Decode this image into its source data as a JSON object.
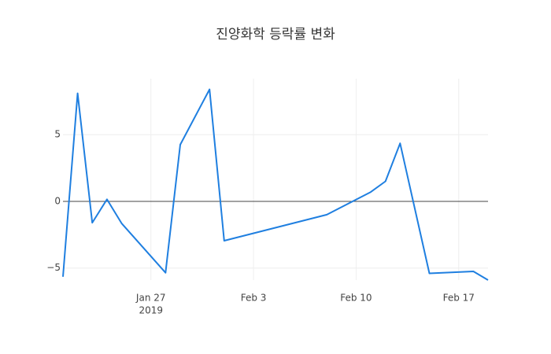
{
  "chart_data": {
    "type": "line",
    "title": "진양화학 등락률 변화",
    "x": [
      "2019-01-21",
      "2019-01-22",
      "2019-01-23",
      "2019-01-24",
      "2019-01-25",
      "2019-01-28",
      "2019-01-29",
      "2019-01-31",
      "2019-02-01",
      "2019-02-08",
      "2019-02-11",
      "2019-02-12",
      "2019-02-13",
      "2019-02-15",
      "2019-02-18",
      "2019-02-19"
    ],
    "series": [
      {
        "color": "#1f7fe0",
        "values": [
          -5.65,
          8.1,
          -1.6,
          0.15,
          -1.65,
          -5.35,
          4.25,
          8.4,
          -2.95,
          -1.0,
          0.7,
          1.5,
          4.35,
          -5.4,
          -5.25,
          -5.9
        ]
      }
    ],
    "xlim": [
      "2019-01-21",
      "2019-02-19"
    ],
    "xticks": [
      {
        "value": "2019-01-27",
        "label": "Jan 27"
      },
      {
        "value": "2019-02-03",
        "label": "Feb 3"
      },
      {
        "value": "2019-02-10",
        "label": "Feb 10"
      },
      {
        "value": "2019-02-17",
        "label": "Feb 17"
      }
    ],
    "xtick_year": "2019",
    "ylim": [
      -5.9,
      9.2
    ],
    "yticks": [
      {
        "value": -5,
        "label": "−5"
      },
      0,
      5
    ],
    "grid": true
  }
}
